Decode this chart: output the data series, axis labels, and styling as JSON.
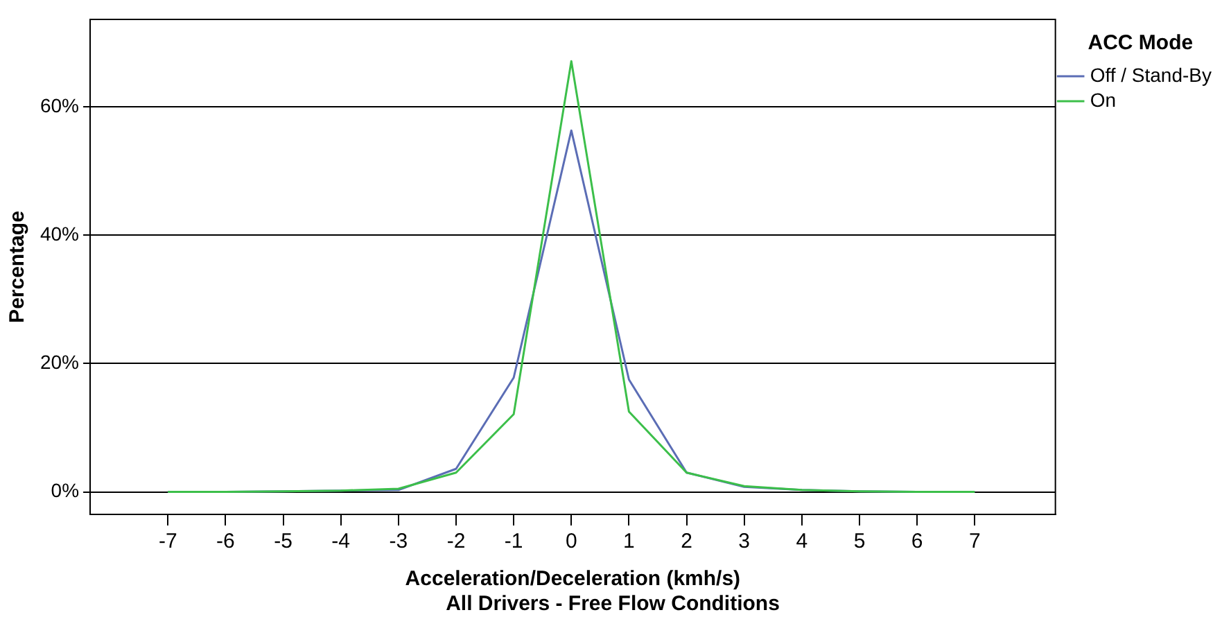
{
  "chart_data": {
    "type": "line",
    "title": "All Drivers - Free Flow Conditions",
    "xlabel": "Acceleration/Deceleration (kmh/s)",
    "ylabel": "Percentage",
    "legend_title": "ACC Mode",
    "x": [
      -7,
      -6,
      -5,
      -4,
      -3,
      -2,
      -1,
      0,
      1,
      2,
      3,
      4,
      5,
      6,
      7
    ],
    "series": [
      {
        "name": "Off / Stand-By",
        "color": "#5b6db5",
        "values": [
          0,
          0,
          0.1,
          0.2,
          0.3,
          3.6,
          17.8,
          56.3,
          17.5,
          3.0,
          0.8,
          0.3,
          0.1,
          0,
          0
        ]
      },
      {
        "name": "On",
        "color": "#3cbf4a",
        "values": [
          0,
          0,
          0.1,
          0.2,
          0.5,
          3.0,
          12.1,
          67.1,
          12.5,
          3.0,
          0.9,
          0.3,
          0.1,
          0,
          0
        ]
      }
    ],
    "xlim": [
      -8.35,
      8.4
    ],
    "xticks": [
      -7,
      -6,
      -5,
      -4,
      -3,
      -2,
      -1,
      0,
      1,
      2,
      3,
      4,
      5,
      6,
      7
    ],
    "ylim": [
      -3.5,
      73.6
    ],
    "yticks": [
      {
        "value": 0,
        "label": "0%"
      },
      {
        "value": 20,
        "label": "20%"
      },
      {
        "value": 40,
        "label": "40%"
      },
      {
        "value": 60,
        "label": "60%"
      }
    ],
    "grid": "y",
    "legend": "right",
    "marker": "none",
    "line_style": "solid"
  }
}
